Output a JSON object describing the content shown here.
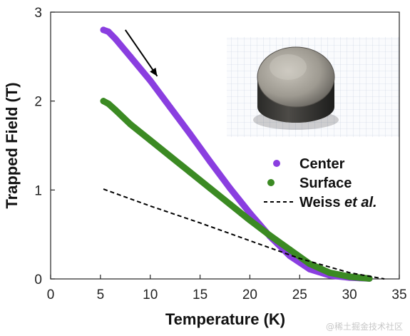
{
  "chart_data": {
    "type": "line",
    "xlabel": "Temperature (K)",
    "ylabel": "Trapped Field (T)",
    "xlim": [
      0,
      35
    ],
    "ylim": [
      0,
      3
    ],
    "xticks": [
      0,
      5,
      10,
      15,
      20,
      25,
      30,
      35
    ],
    "yticks": [
      0,
      1,
      2,
      3
    ],
    "grid": false,
    "legend_position": "right",
    "series": [
      {
        "name": "Center",
        "style": "markers",
        "color": "#8a3ee0",
        "x": [
          5.3,
          5.8,
          6.5,
          8,
          10,
          12,
          14,
          16,
          18,
          20,
          22,
          24,
          26,
          28,
          30,
          31,
          32
        ],
        "y": [
          2.8,
          2.78,
          2.7,
          2.5,
          2.23,
          1.93,
          1.63,
          1.32,
          1.02,
          0.74,
          0.48,
          0.26,
          0.11,
          0.04,
          0.015,
          0.01,
          0.005
        ]
      },
      {
        "name": "Surface",
        "style": "markers",
        "color": "#3b8a23",
        "x": [
          5.3,
          5.8,
          6.5,
          8,
          10,
          12,
          14,
          16,
          18,
          20,
          22,
          24,
          26,
          28,
          30,
          32
        ],
        "y": [
          2.0,
          1.97,
          1.9,
          1.74,
          1.56,
          1.38,
          1.2,
          1.02,
          0.84,
          0.66,
          0.49,
          0.33,
          0.17,
          0.07,
          0.025,
          0.005
        ]
      },
      {
        "name": "Weiss et al.",
        "style": "dashed",
        "color": "#000000",
        "x": [
          5.3,
          10,
          15,
          20,
          25,
          30,
          33.5
        ],
        "y": [
          1.01,
          0.82,
          0.63,
          0.43,
          0.23,
          0.07,
          0.0
        ]
      }
    ],
    "legend": [
      {
        "label": "Center",
        "marker": "dot",
        "color": "#8a3ee0"
      },
      {
        "label": "Surface",
        "marker": "dot",
        "color": "#3b8a23"
      },
      {
        "label_main": "Weiss ",
        "label_italic": "et al.",
        "marker": "dash",
        "color": "#000000"
      }
    ],
    "annotations": [
      {
        "type": "arrow",
        "direction": "down-right",
        "color": "#000000",
        "x_from": 7.5,
        "y_from": 2.8,
        "x_to": 10.7,
        "y_to": 2.28
      }
    ],
    "inset_image": {
      "subject": "cylindrical-bulk-sample-on-grid-paper"
    }
  },
  "watermark": {
    "text": "@稀土掘金技术社区"
  }
}
